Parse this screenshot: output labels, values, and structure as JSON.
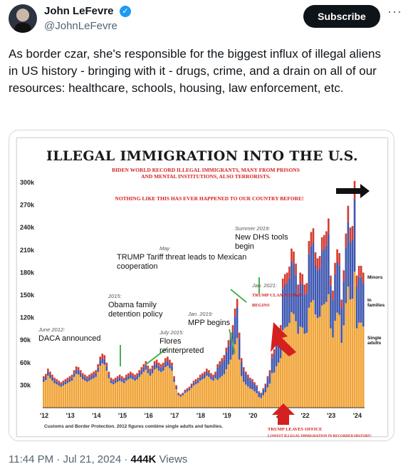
{
  "author": {
    "name": "John LeFevre",
    "handle": "@JohnLeFevre",
    "verified_color": "#1d9bf0"
  },
  "actions": {
    "subscribe_label": "Subscribe",
    "more_label": "···"
  },
  "tweet": {
    "text": "As border czar, she's responsible for the biggest influx of illegal aliens in US history - bringing with it - drugs, crime, and a drain on all of our resources: healthcare, schools, housing, law enforcement, etc."
  },
  "meta": {
    "time": "11:44 PM",
    "date": "Jul 21, 2024",
    "views": "444K",
    "views_label": "Views"
  },
  "media": {
    "headline": "ILLEGAL IMMIGRATION INTO THE U.S.",
    "red_note_1": "BIDEN WORLD RECORD ILLEGAL IMMIGRANTS, MANY FROM PRISONS AND MENTAL INSTITUTIONS, ALSO TERRORISTS.",
    "red_note_2": "NOTHING LIKE THIS HAS EVER HAPPENED TO OUR COUNTRY BEFORE!",
    "annotations": [
      {
        "date": "June 2012:",
        "label": "DACA announced"
      },
      {
        "date": "2015:",
        "label": "Obama family detention policy"
      },
      {
        "date": "May",
        "label": "TRUMP Tariff threat leads to Mexican cooperation"
      },
      {
        "date": "July 2015:",
        "label": "Flores reinterpreted"
      },
      {
        "date": "Summer 2019:",
        "label": "New DHS tools begin"
      },
      {
        "date": "Jan. 2019:",
        "label": "MPP begins"
      },
      {
        "date": "Jan. 2021:",
        "label": "TRUMP CLAMPDOWN BEGINS"
      }
    ],
    "leaves_office": "TRUMP LEAVES OFFICE",
    "leaves_office_sub": "LOWEST ILLEGAL IMMIGRATION IN RECORDED HISTORY!",
    "side_labels": [
      "Minors",
      "In families",
      "Single adults"
    ],
    "footnote": "Customs and Border Protection. 2012 figures combine single adults and families."
  },
  "chart_data": {
    "type": "bar",
    "stacked": true,
    "ylim": [
      0,
      300000
    ],
    "y_ticks": [
      "30k",
      "60k",
      "90k",
      "120k",
      "150k",
      "180k",
      "210k",
      "240k",
      "270k",
      "300k"
    ],
    "x_ticks": [
      "'12",
      "'13",
      "'14",
      "'15",
      "'16",
      "'17",
      "'18",
      "'19",
      "'20",
      "'21",
      "'22",
      "'23",
      "'24"
    ],
    "colors": {
      "single_adults": "#f0a335",
      "in_families": "#3d56b0",
      "minors": "#d63a2f"
    },
    "series_names": [
      "Single adults",
      "In families",
      "Minors"
    ],
    "monthly_totals": [
      42000,
      45000,
      52000,
      48000,
      44000,
      40000,
      38000,
      36000,
      34000,
      36000,
      38000,
      40000,
      42000,
      44000,
      50000,
      55000,
      54000,
      50000,
      46000,
      44000,
      42000,
      44000,
      46000,
      48000,
      50000,
      58000,
      68000,
      72000,
      70000,
      60000,
      48000,
      40000,
      38000,
      40000,
      42000,
      44000,
      42000,
      40000,
      44000,
      46000,
      48000,
      46000,
      44000,
      46000,
      50000,
      54000,
      58000,
      62000,
      56000,
      52000,
      56000,
      62000,
      64000,
      60000,
      58000,
      60000,
      66000,
      68000,
      64000,
      60000,
      42000,
      30000,
      20000,
      18000,
      20000,
      24000,
      26000,
      28000,
      32000,
      36000,
      38000,
      40000,
      44000,
      46000,
      48000,
      52000,
      50000,
      46000,
      44000,
      48000,
      58000,
      62000,
      66000,
      70000,
      80000,
      90000,
      100000,
      110000,
      132000,
      145000,
      100000,
      66000,
      54000,
      48000,
      44000,
      40000,
      38000,
      34000,
      30000,
      22000,
      20000,
      26000,
      32000,
      42000,
      50000,
      72000,
      78000,
      92000,
      100000,
      110000,
      172000,
      178000,
      180000,
      188000,
      212000,
      208000,
      192000,
      164000,
      180000,
      178000,
      164000,
      166000,
      222000,
      234000,
      239000,
      207000,
      199000,
      202000,
      227000,
      230000,
      235000,
      252000,
      176000,
      156000,
      193000,
      211000,
      206000,
      144000,
      183000,
      232000,
      269000,
      240000,
      242000,
      302000,
      176000,
      189000,
      189000,
      180000
    ],
    "minors_share": 0.08,
    "families_share": 0.32
  }
}
